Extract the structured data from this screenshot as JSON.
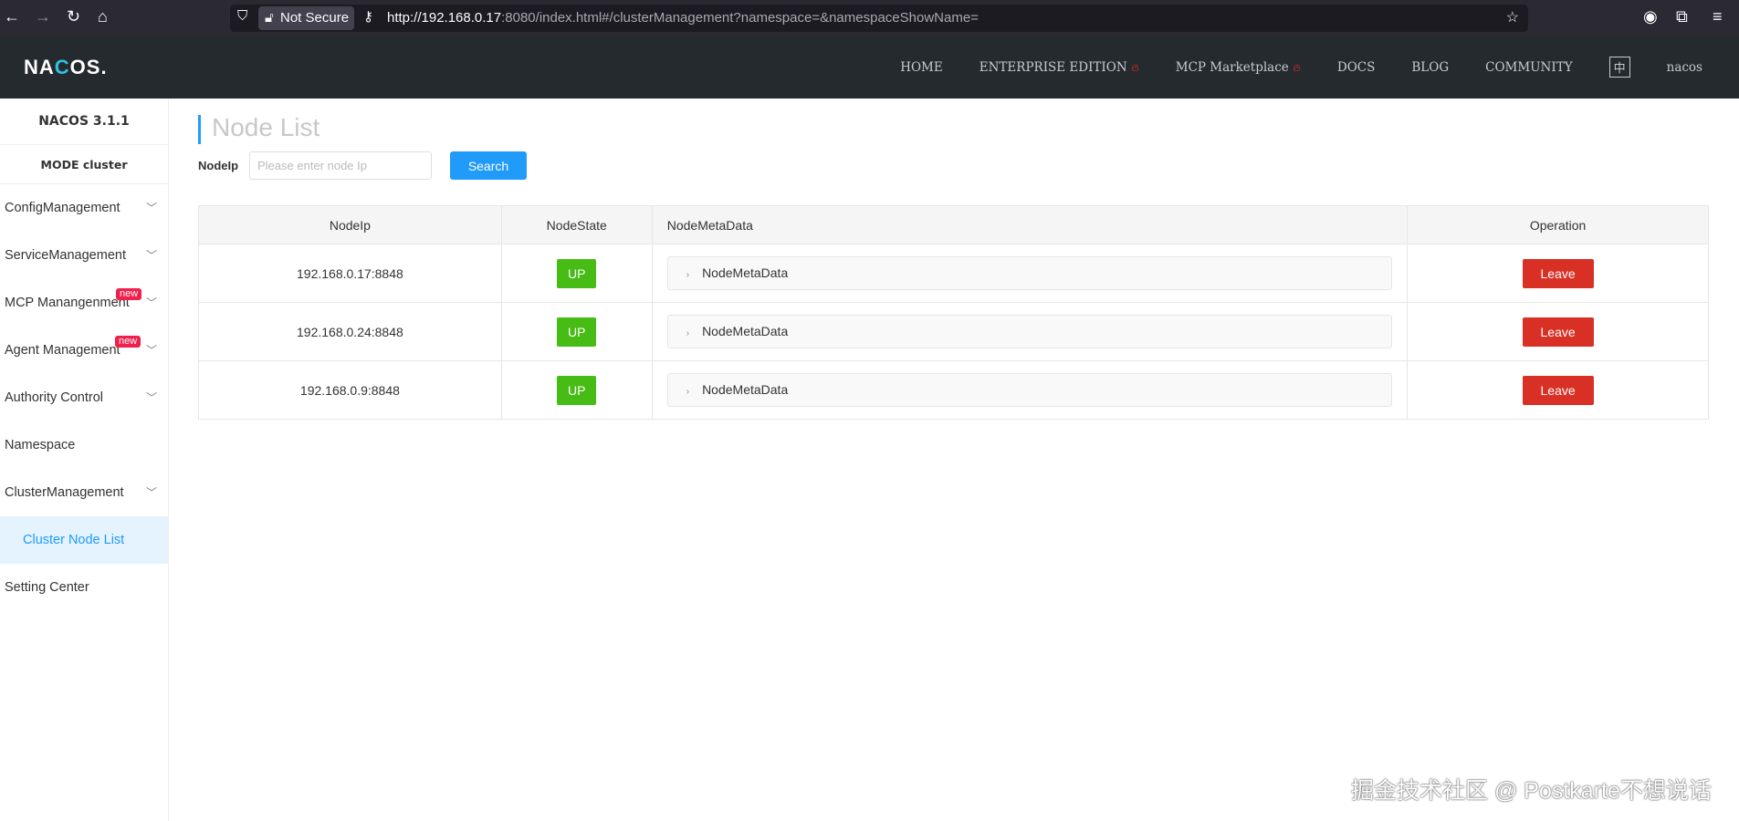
{
  "browser": {
    "security": "Not Secure",
    "url_host": "http://192.168.0.17",
    "url_rest": ":8080/index.html#/clusterManagement?namespace=&namespaceShowName="
  },
  "header": {
    "logo": "NACOS.",
    "nav": [
      {
        "label": "HOME"
      },
      {
        "label": "ENTERPRISE EDITION",
        "hot": true
      },
      {
        "label": "MCP Marketplace",
        "hot": true
      },
      {
        "label": "DOCS"
      },
      {
        "label": "BLOG"
      },
      {
        "label": "COMMUNITY"
      }
    ],
    "lang": "中",
    "user": "nacos",
    "hot_icon": "fire-icon",
    "hot_color": "#e0321e"
  },
  "sidebar": {
    "title": "NACOS 3.1.1",
    "mode": "MODE cluster",
    "badge": "new",
    "items": [
      {
        "label": "ConfigManagement"
      },
      {
        "label": "ServiceManagement"
      },
      {
        "label": "MCP Manangenment"
      },
      {
        "label": "Agent Management"
      },
      {
        "label": "Authority Control"
      },
      {
        "label": "Namespace"
      },
      {
        "label": "ClusterManagement"
      },
      {
        "label": "Cluster Node List"
      },
      {
        "label": "Setting Center"
      }
    ]
  },
  "main": {
    "title": "Node List",
    "filter_label": "NodeIp",
    "filter_placeholder": "Please enter node Ip",
    "filter_value": "",
    "search_label": "Search",
    "columns": [
      "NodeIp",
      "NodeState",
      "NodeMetaData",
      "Operation"
    ],
    "rows": [
      {
        "ip": "192.168.0.17:8848",
        "state": "UP",
        "meta": "NodeMetaData",
        "op": "Leave"
      },
      {
        "ip": "192.168.0.24:8848",
        "state": "UP",
        "meta": "NodeMetaData",
        "op": "Leave"
      },
      {
        "ip": "192.168.0.9:8848",
        "state": "UP",
        "meta": "NodeMetaData",
        "op": "Leave"
      }
    ]
  },
  "colors": {
    "accent": "#209bfa",
    "up": "#46bc15",
    "leave": "#d93026",
    "header_bg": "#252a2f"
  },
  "watermark": "掘金技术社区 @ Postkarte不想说话"
}
